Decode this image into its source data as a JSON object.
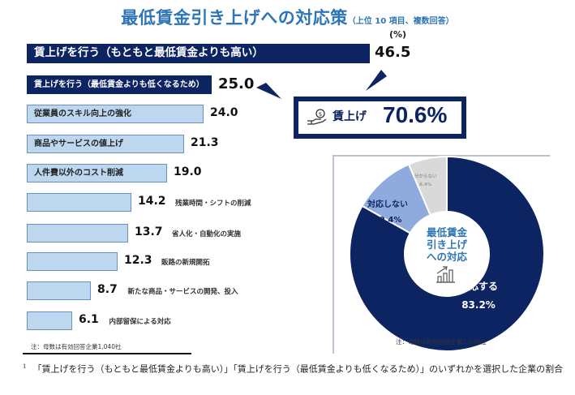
{
  "header": {
    "title": "最低賃金引き上げへの対応策",
    "subtitle": "（上位 10 項目、複数回答）",
    "unit": "(%)"
  },
  "highlight": {
    "icon": "hand-coin-icon",
    "label": "賃上げ",
    "value": "70.6%"
  },
  "notes": {
    "left": "注：母数は有効回答企業1,040社",
    "right": "注：母数は有効回答企業1,040社"
  },
  "footnote": {
    "marker": "1",
    "text": "「賃上げを行う（もともと最低賃金よりも高い）」「賃上げを行う（最低賃金よりも低くなるため）」のいずれかを選択した企業の割合"
  },
  "donut_center": {
    "line1": "最低賃金",
    "line2": "引き上げ",
    "line3": "への対応",
    "icon": "chart-growth-icon"
  },
  "colors": {
    "dark_navy": "#0d2463",
    "light_blue": "#bdd7ee",
    "mid_blue": "#8faadc",
    "gray": "#d9d9d9",
    "title_blue": "#2e75b6"
  },
  "chart_data": [
    {
      "type": "bar",
      "orientation": "horizontal",
      "title": "最低賃金引き上げへの対応策（上位 10 項目、複数回答）",
      "xlabel": "",
      "ylabel": "",
      "unit": "%",
      "xlim": [
        0,
        50
      ],
      "grid": false,
      "categories": [
        "賃上げを行う（もともと最低賃金よりも高い）",
        "賃上げを行う（最低賃金よりも低くなるため）",
        "従業員のスキル向上の強化",
        "商品やサービスの値上げ",
        "人件費以外のコスト削減",
        "残業時間・シフトの削減",
        "省人化・自動化の実施",
        "販路の新規開拓",
        "新たな商品・サービスの開発、投入",
        "内部留保による対応"
      ],
      "values": [
        46.5,
        25.0,
        24.0,
        21.3,
        19.0,
        14.2,
        13.7,
        12.3,
        8.7,
        6.1
      ],
      "value_labels": [
        "46.5",
        "25.0",
        "24.0",
        "21.3",
        "19.0",
        "14.2",
        "13.7",
        "12.3",
        "8.7",
        "6.1"
      ],
      "highlighted": [
        true,
        true,
        false,
        false,
        false,
        false,
        false,
        false,
        false,
        false
      ],
      "label_inside": [
        true,
        true,
        true,
        true,
        true,
        false,
        false,
        false,
        false,
        false
      ]
    },
    {
      "type": "pie",
      "variant": "donut",
      "title": "最低賃金引き上げへの対応",
      "labels": [
        "対応する",
        "対応しない",
        "分からない"
      ],
      "values": [
        83.2,
        10.4,
        6.4
      ],
      "value_labels": [
        "83.2%",
        "10.4%",
        "6.4%"
      ],
      "colors": [
        "#0d2463",
        "#8faadc",
        "#d9d9d9"
      ],
      "start": "top",
      "direction": "clockwise"
    }
  ]
}
